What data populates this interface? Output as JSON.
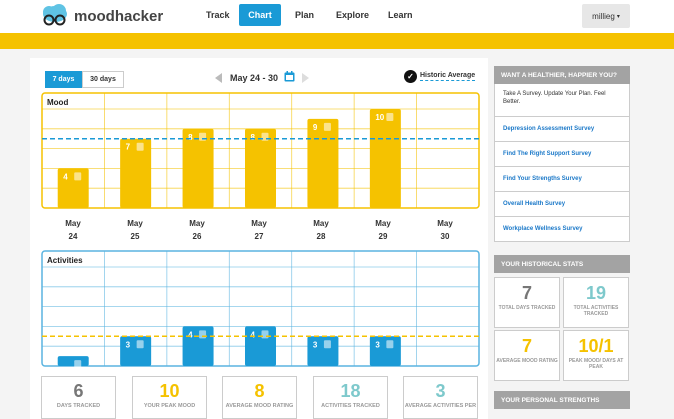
{
  "brand": {
    "name": "moodhacker"
  },
  "nav": [
    {
      "label": "Track",
      "active": false
    },
    {
      "label": "Chart",
      "active": true
    },
    {
      "label": "Plan",
      "active": false
    },
    {
      "label": "Explore",
      "active": false
    },
    {
      "label": "Learn",
      "active": false
    }
  ],
  "user": {
    "name": "millieg",
    "caret": "▾"
  },
  "range": {
    "seven": "7 days",
    "thirty": "30 days",
    "selected": "7 days"
  },
  "date_range": "May 24 - 30",
  "historic_average": {
    "label": "Historic Average",
    "checked": true
  },
  "mood_panel": {
    "title": "Mood"
  },
  "activities_panel": {
    "title": "Activities"
  },
  "days": [
    {
      "month": "May",
      "day": "24"
    },
    {
      "month": "May",
      "day": "25"
    },
    {
      "month": "May",
      "day": "26"
    },
    {
      "month": "May",
      "day": "27"
    },
    {
      "month": "May",
      "day": "28"
    },
    {
      "month": "May",
      "day": "29"
    },
    {
      "month": "May",
      "day": "30"
    }
  ],
  "chart_data": [
    {
      "type": "bar",
      "title": "Mood",
      "categories": [
        "May 24",
        "May 25",
        "May 26",
        "May 27",
        "May 28",
        "May 29",
        "May 30"
      ],
      "values": [
        4,
        7,
        8,
        8,
        9,
        10,
        null
      ],
      "data_labels": [
        "4",
        "7",
        "8",
        "8",
        "9",
        "10",
        ""
      ],
      "ylim": [
        0,
        10
      ],
      "average_line": 7,
      "color": "#f5c200"
    },
    {
      "type": "bar",
      "title": "Activities",
      "categories": [
        "May 24",
        "May 25",
        "May 26",
        "May 27",
        "May 28",
        "May 29",
        "May 30"
      ],
      "values": [
        1,
        3,
        4,
        4,
        3,
        3,
        null
      ],
      "data_labels": [
        "",
        "3",
        "4",
        "4",
        "3",
        "3",
        ""
      ],
      "ylim": [
        0,
        10
      ],
      "average_line": 3,
      "color": "#1a9ad6"
    }
  ],
  "stats": [
    {
      "value": "6",
      "label": "DAYS TRACKED",
      "color": "#777777"
    },
    {
      "value": "10",
      "label": "YOUR PEAK MOOD",
      "color": "#f5c200"
    },
    {
      "value": "8",
      "label": "AVERAGE MOOD RATING",
      "color": "#f5c200"
    },
    {
      "value": "18",
      "label": "ACTIVITIES TRACKED",
      "color": "#7ec9cc"
    },
    {
      "value": "3",
      "label": "AVERAGE ACTIVITIES PER",
      "color": "#7ec9cc"
    }
  ],
  "sidebar": {
    "survey_title": "WANT A HEALTHIER, HAPPIER YOU?",
    "survey_intro": "Take A Survey. Update Your Plan. Feel Better.",
    "surveys": [
      "Depression Assessment Survey",
      "Find The Right Support Survey",
      "Find Your Strengths Survey",
      "Overall Health Survey",
      "Workplace Wellness Survey"
    ],
    "historical_title": "YOUR HISTORICAL STATS",
    "historical": [
      {
        "value": "7",
        "label": "TOTAL DAYS TRACKED",
        "color": "#777777"
      },
      {
        "value": "19",
        "label": "TOTAL ACTIVITIES TRACKED",
        "color": "#7ec9cc"
      },
      {
        "value": "7",
        "label": "AVERAGE MOOD RATING",
        "color": "#f5c200"
      },
      {
        "value": "10/1",
        "label": "PEAK MOOD/ DAYS AT PEAK",
        "color": "#f5c200"
      }
    ],
    "strengths_title": "YOUR PERSONAL STRENGTHS"
  },
  "colors": {
    "accent": "#1a9ad6",
    "brand_yellow": "#f5c200",
    "teal": "#7ec9cc"
  }
}
